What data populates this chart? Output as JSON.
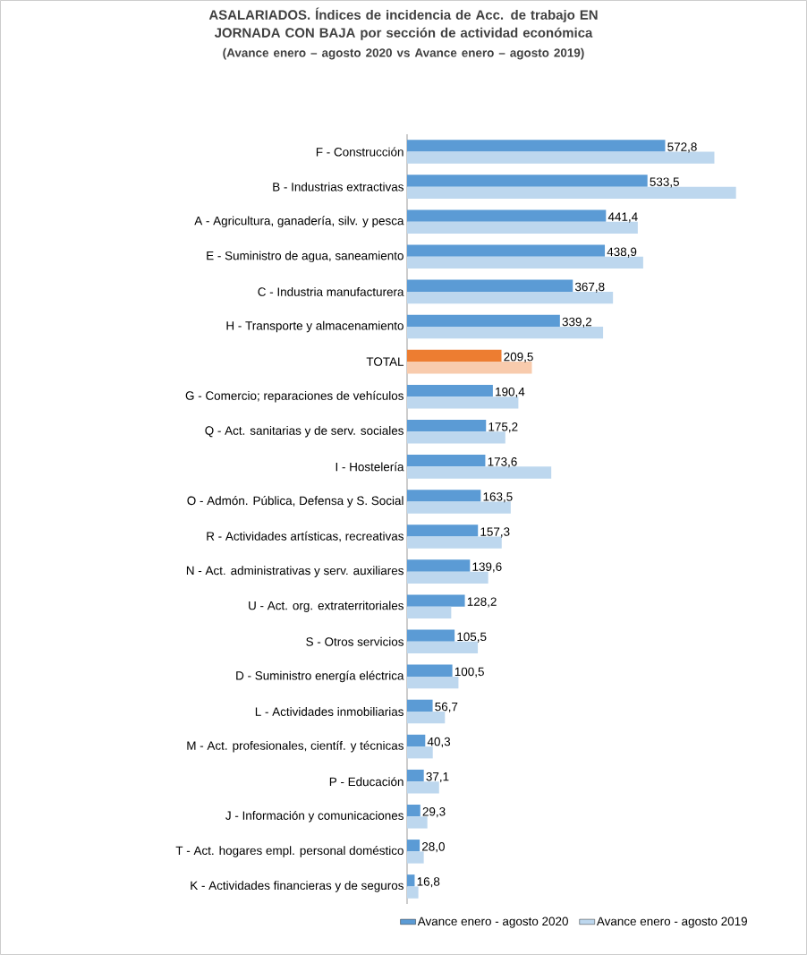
{
  "chart_data": {
    "type": "bar",
    "orientation": "horizontal",
    "title": "ASALARIADOS. Índices de incidencia de Acc. de trabajo EN JORNADA CON BAJA por sección de actividad económica",
    "subtitle": "(Avance enero – agosto 2020 vs Avance enero – agosto 2019)",
    "categories": [
      "F - Construcción",
      "B - Industrias extractivas",
      "A - Agricultura, ganadería, silv. y pesca",
      "E - Suministro de agua, saneamiento",
      "C - Industria manufacturera",
      "H - Transporte y almacenamiento",
      "TOTAL",
      "G - Comercio; reparaciones de vehículos",
      "Q - Act. sanitarias y de serv. sociales",
      "I - Hostelería",
      "O - Admón. Pública, Defensa y S. Social",
      "R - Actividades artísticas, recreativas",
      "N - Act. administrativas y serv. auxiliares",
      "U - Act. org. extraterritoriales",
      "S - Otros servicios",
      "D - Suministro energía eléctrica",
      "L - Actividades inmobiliarias",
      "M - Act. profesionales, científ. y técnicas",
      "P - Educación",
      "J - Información y comunicaciones",
      "T - Act. hogares empl. personal doméstico",
      "K - Actividades financieras y de seguros"
    ],
    "series": [
      {
        "name": "Avance enero - agosto 2020",
        "color": "#5b9bd5",
        "colors": [
          "#5b9bd5",
          "#5b9bd5",
          "#5b9bd5",
          "#5b9bd5",
          "#5b9bd5",
          "#5b9bd5",
          "#ed7d31",
          "#5b9bd5",
          "#5b9bd5",
          "#5b9bd5",
          "#5b9bd5",
          "#5b9bd5",
          "#5b9bd5",
          "#5b9bd5",
          "#5b9bd5",
          "#5b9bd5",
          "#5b9bd5",
          "#5b9bd5",
          "#5b9bd5",
          "#5b9bd5",
          "#5b9bd5",
          "#5b9bd5"
        ],
        "values": [
          572.8,
          533.5,
          441.4,
          438.9,
          367.8,
          339.2,
          209.5,
          190.4,
          175.2,
          173.6,
          163.5,
          157.3,
          139.6,
          128.2,
          105.5,
          100.5,
          56.7,
          40.3,
          37.1,
          29.3,
          28.0,
          16.8
        ],
        "value_labels": [
          "572,8",
          "533,5",
          "441,4",
          "438,9",
          "367,8",
          "339,2",
          "209,5",
          "190,4",
          "175,2",
          "173,6",
          "163,5",
          "157,3",
          "139,6",
          "128,2",
          "105,5",
          "100,5",
          "56,7",
          "40,3",
          "37,1",
          "29,3",
          "28,0",
          "16,8"
        ]
      },
      {
        "name": "Avance enero - agosto 2019",
        "color": "#bdd7ee",
        "colors": [
          "#bdd7ee",
          "#bdd7ee",
          "#bdd7ee",
          "#bdd7ee",
          "#bdd7ee",
          "#bdd7ee",
          "#f8cbad",
          "#bdd7ee",
          "#bdd7ee",
          "#bdd7ee",
          "#bdd7ee",
          "#bdd7ee",
          "#bdd7ee",
          "#bdd7ee",
          "#bdd7ee",
          "#bdd7ee",
          "#bdd7ee",
          "#bdd7ee",
          "#bdd7ee",
          "#bdd7ee",
          "#bdd7ee",
          "#bdd7ee"
        ],
        "values": [
          682,
          730,
          512,
          524,
          457,
          435,
          277,
          247,
          218,
          320,
          230,
          210,
          180,
          98,
          157,
          114,
          84,
          57,
          71,
          45,
          37,
          25
        ]
      }
    ],
    "legend": "bottom"
  }
}
